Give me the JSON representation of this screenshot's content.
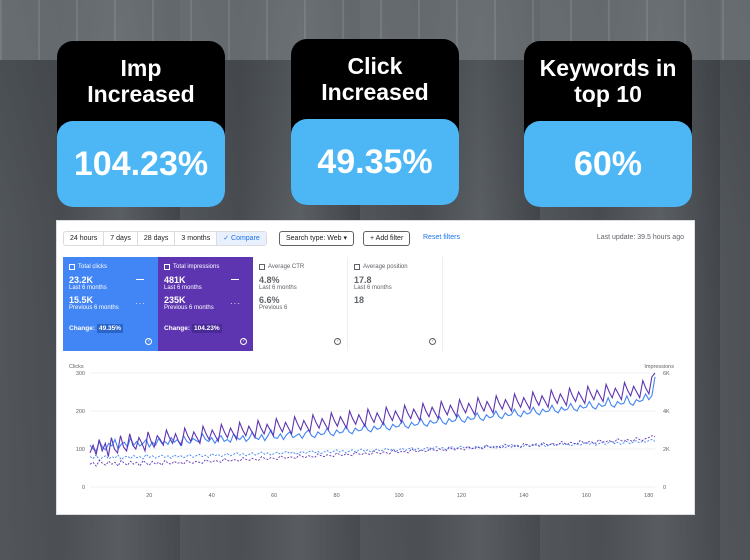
{
  "cards": [
    {
      "label": "Imp\nIncreased",
      "value": "104.23%"
    },
    {
      "label": "Click\nIncreased",
      "value": "49.35%"
    },
    {
      "label": "Keywords in\ntop 10",
      "value": "60%"
    }
  ],
  "toolbar": {
    "ranges": [
      "24 hours",
      "7 days",
      "28 days",
      "3 months",
      "✓  Compare"
    ],
    "search_type": "Search type: Web  ▾",
    "add_filter": "+  Add filter",
    "reset": "Reset filters",
    "last_update": "Last update: 39.5 hours ago"
  },
  "metrics": {
    "clicks": {
      "title": "Total clicks",
      "value": "23.2K",
      "period": "Last 6 months",
      "prev_value": "15.5K",
      "prev_period": "Previous 6 months",
      "change_label": "Change:",
      "change": "49.35%"
    },
    "impressions": {
      "title": "Total impressions",
      "value": "481K",
      "period": "Last 6 months",
      "prev_value": "235K",
      "prev_period": "Previous 6 months",
      "change_label": "Change:",
      "change": "104.23%"
    },
    "ctr": {
      "title": "Average CTR",
      "value": "4.8%",
      "period": "Last 6 months",
      "prev_value": "6.6%",
      "prev_period": "Previous 6"
    },
    "position": {
      "title": "Average position",
      "value": "17.8",
      "period": "Last 6 months",
      "prev_value": "18"
    }
  },
  "chart": {
    "left_label": "Clicks",
    "right_label": "Impressions"
  },
  "chart_data": {
    "type": "line",
    "x_ticks": [
      20,
      40,
      60,
      80,
      100,
      120,
      140,
      160,
      180
    ],
    "y_left_ticks": [
      0,
      100,
      200,
      300
    ],
    "y_right_ticks": [
      "0",
      "2K",
      "4K",
      "6K"
    ],
    "xlim": [
      1,
      182
    ],
    "ylim_left": [
      0,
      300
    ],
    "ylim_right": [
      0,
      6000
    ],
    "series": [
      {
        "color": "#4285f4",
        "style": "solid",
        "axis": "left",
        "values": [
          110,
          100,
          95,
          120,
          105,
          98,
          115,
          108,
          125,
          100,
          112,
          118,
          105,
          130,
          110,
          120,
          108,
          115,
          125,
          105,
          118,
          110,
          128,
          115,
          120,
          112,
          130,
          118,
          125,
          110,
          135,
          120,
          115,
          128,
          122,
          118,
          140,
          125,
          120,
          130,
          115,
          128,
          135,
          120,
          125,
          118,
          140,
          130,
          125,
          135,
          120,
          128,
          145,
          130,
          125,
          138,
          122,
          135,
          150,
          130,
          128,
          140,
          125,
          138,
          145,
          130,
          135,
          140,
          128,
          142,
          150,
          135,
          130,
          145,
          138,
          140,
          155,
          140,
          135,
          150,
          142,
          145,
          160,
          145,
          140,
          155,
          148,
          150,
          165,
          150,
          145,
          160,
          152,
          155,
          170,
          155,
          150,
          165,
          158,
          160,
          175,
          160,
          155,
          170,
          162,
          165,
          180,
          165,
          160,
          175,
          168,
          170,
          185,
          170,
          165,
          180,
          172,
          175,
          190,
          175,
          170,
          185,
          178,
          180,
          195,
          180,
          175,
          190,
          182,
          185,
          200,
          185,
          180,
          195,
          188,
          190,
          205,
          190,
          185,
          200,
          192,
          195,
          210,
          195,
          190,
          205,
          198,
          200,
          215,
          200,
          195,
          210,
          202,
          205,
          220,
          205,
          200,
          215,
          208,
          210,
          225,
          210,
          205,
          220,
          212,
          215,
          235,
          215,
          210,
          225,
          218,
          220,
          240,
          220,
          215,
          230,
          225,
          228,
          245,
          230,
          240,
          290
        ]
      },
      {
        "color": "#5e35b1",
        "style": "solid",
        "axis": "right",
        "values": [
          1800,
          2200,
          1700,
          2500,
          1900,
          2300,
          1600,
          2600,
          2000,
          1800,
          2700,
          2100,
          1900,
          2800,
          2200,
          2000,
          2600,
          2300,
          1900,
          2900,
          2400,
          2100,
          2700,
          2500,
          2200,
          3000,
          2600,
          2300,
          2800,
          2400,
          2200,
          3100,
          2700,
          2400,
          2900,
          2600,
          2300,
          3200,
          2800,
          2500,
          3000,
          2700,
          2400,
          3300,
          2900,
          2600,
          3100,
          2800,
          2500,
          3400,
          3000,
          2700,
          3200,
          2900,
          2600,
          3500,
          3100,
          2800,
          3300,
          3000,
          2700,
          3600,
          3200,
          2900,
          3400,
          3100,
          2800,
          3700,
          3300,
          3000,
          3500,
          3200,
          2900,
          3800,
          3400,
          3100,
          3600,
          3300,
          3000,
          3900,
          3500,
          3200,
          3700,
          3400,
          3100,
          4000,
          3600,
          3300,
          3800,
          3500,
          3200,
          4100,
          3700,
          3400,
          3900,
          3600,
          3300,
          4200,
          3800,
          3500,
          4000,
          3700,
          3400,
          4300,
          3900,
          3600,
          4100,
          3800,
          3500,
          4400,
          4000,
          3700,
          4200,
          3900,
          3600,
          4500,
          4100,
          3800,
          4300,
          4000,
          3700,
          4600,
          4200,
          3900,
          4400,
          4100,
          3800,
          4700,
          4300,
          4000,
          4500,
          4200,
          3900,
          4800,
          4400,
          4100,
          4600,
          4300,
          4000,
          4900,
          4500,
          4200,
          4700,
          4400,
          4100,
          5000,
          4600,
          4300,
          4800,
          4500,
          4200,
          5100,
          4700,
          4400,
          4900,
          4600,
          4300,
          5200,
          4800,
          4500,
          5000,
          4700,
          4400,
          5300,
          4900,
          4600,
          5100,
          4800,
          4500,
          5400,
          5000,
          4700,
          5200,
          4900,
          4600,
          5500,
          5100,
          4800,
          5300,
          5000,
          4700,
          5600,
          5200,
          4900,
          5800,
          6000
        ]
      },
      {
        "color": "#4285f4",
        "style": "dashed",
        "axis": "left",
        "values": [
          80,
          75,
          85,
          70,
          78,
          82,
          74,
          80,
          76,
          84,
          72,
          79,
          81,
          75,
          83,
          77,
          80,
          74,
          86,
          78,
          82,
          76,
          80,
          84,
          78,
          82,
          75,
          85,
          79,
          83,
          77,
          81,
          85,
          78,
          82,
          86,
          80,
          84,
          78,
          88,
          82,
          86,
          80,
          84,
          88,
          82,
          86,
          90,
          84,
          88,
          82,
          86,
          90,
          84,
          88,
          92,
          86,
          90,
          84,
          88,
          92,
          86,
          90,
          94,
          88,
          92,
          86,
          90,
          94,
          88,
          92,
          96,
          90,
          94,
          88,
          92,
          96,
          90,
          94,
          98,
          92,
          96,
          90,
          94,
          98,
          92,
          96,
          100,
          94,
          98,
          92,
          96,
          100,
          94,
          98,
          102,
          96,
          100,
          94,
          98,
          102,
          96,
          100,
          104,
          98,
          102,
          96,
          100,
          104,
          98,
          102,
          106,
          100,
          104,
          98,
          102,
          106,
          100,
          104,
          108,
          102,
          106,
          100,
          104,
          108,
          102,
          106,
          110,
          104,
          108,
          102,
          106,
          110,
          104,
          108,
          112,
          106,
          110,
          104,
          108,
          112,
          106,
          110,
          114,
          108,
          112,
          106,
          110,
          114,
          108,
          112,
          116,
          110,
          114,
          108,
          112,
          116,
          110,
          114,
          118,
          112,
          116,
          110,
          114,
          118,
          112,
          116,
          120,
          114,
          118,
          112,
          116,
          120,
          114,
          118,
          122,
          116,
          120,
          118,
          122,
          125,
          120
        ]
      },
      {
        "color": "#5e35b1",
        "style": "dashed",
        "axis": "right",
        "values": [
          1200,
          1300,
          1100,
          1400,
          1250,
          1150,
          1350,
          1200,
          1300,
          1100,
          1400,
          1250,
          1150,
          1350,
          1200,
          1300,
          1100,
          1400,
          1250,
          1150,
          1350,
          1200,
          1300,
          1150,
          1400,
          1250,
          1200,
          1350,
          1250,
          1300,
          1200,
          1400,
          1300,
          1250,
          1350,
          1300,
          1250,
          1450,
          1350,
          1300,
          1400,
          1350,
          1300,
          1500,
          1400,
          1350,
          1450,
          1400,
          1350,
          1550,
          1450,
          1400,
          1500,
          1450,
          1400,
          1600,
          1500,
          1450,
          1550,
          1500,
          1450,
          1650,
          1550,
          1500,
          1600,
          1550,
          1500,
          1700,
          1600,
          1550,
          1650,
          1600,
          1550,
          1750,
          1650,
          1600,
          1700,
          1650,
          1600,
          1800,
          1700,
          1650,
          1750,
          1700,
          1650,
          1850,
          1750,
          1700,
          1800,
          1750,
          1700,
          1900,
          1800,
          1750,
          1850,
          1800,
          1750,
          1950,
          1850,
          1800,
          1900,
          1850,
          1800,
          2000,
          1900,
          1850,
          1950,
          1900,
          1850,
          2050,
          1950,
          1900,
          2000,
          1950,
          1900,
          2100,
          2000,
          1950,
          2050,
          2000,
          1950,
          2150,
          2050,
          2000,
          2100,
          2050,
          2000,
          2200,
          2100,
          2050,
          2150,
          2100,
          2050,
          2250,
          2150,
          2100,
          2200,
          2150,
          2100,
          2300,
          2200,
          2150,
          2250,
          2200,
          2150,
          2350,
          2250,
          2200,
          2300,
          2250,
          2200,
          2400,
          2300,
          2250,
          2350,
          2300,
          2250,
          2450,
          2350,
          2300,
          2400,
          2350,
          2300,
          2500,
          2400,
          2350,
          2450,
          2400,
          2350,
          2550,
          2450,
          2400,
          2500,
          2450,
          2400,
          2600,
          2500,
          2450,
          2550,
          2600,
          2700,
          2650
        ]
      }
    ]
  }
}
